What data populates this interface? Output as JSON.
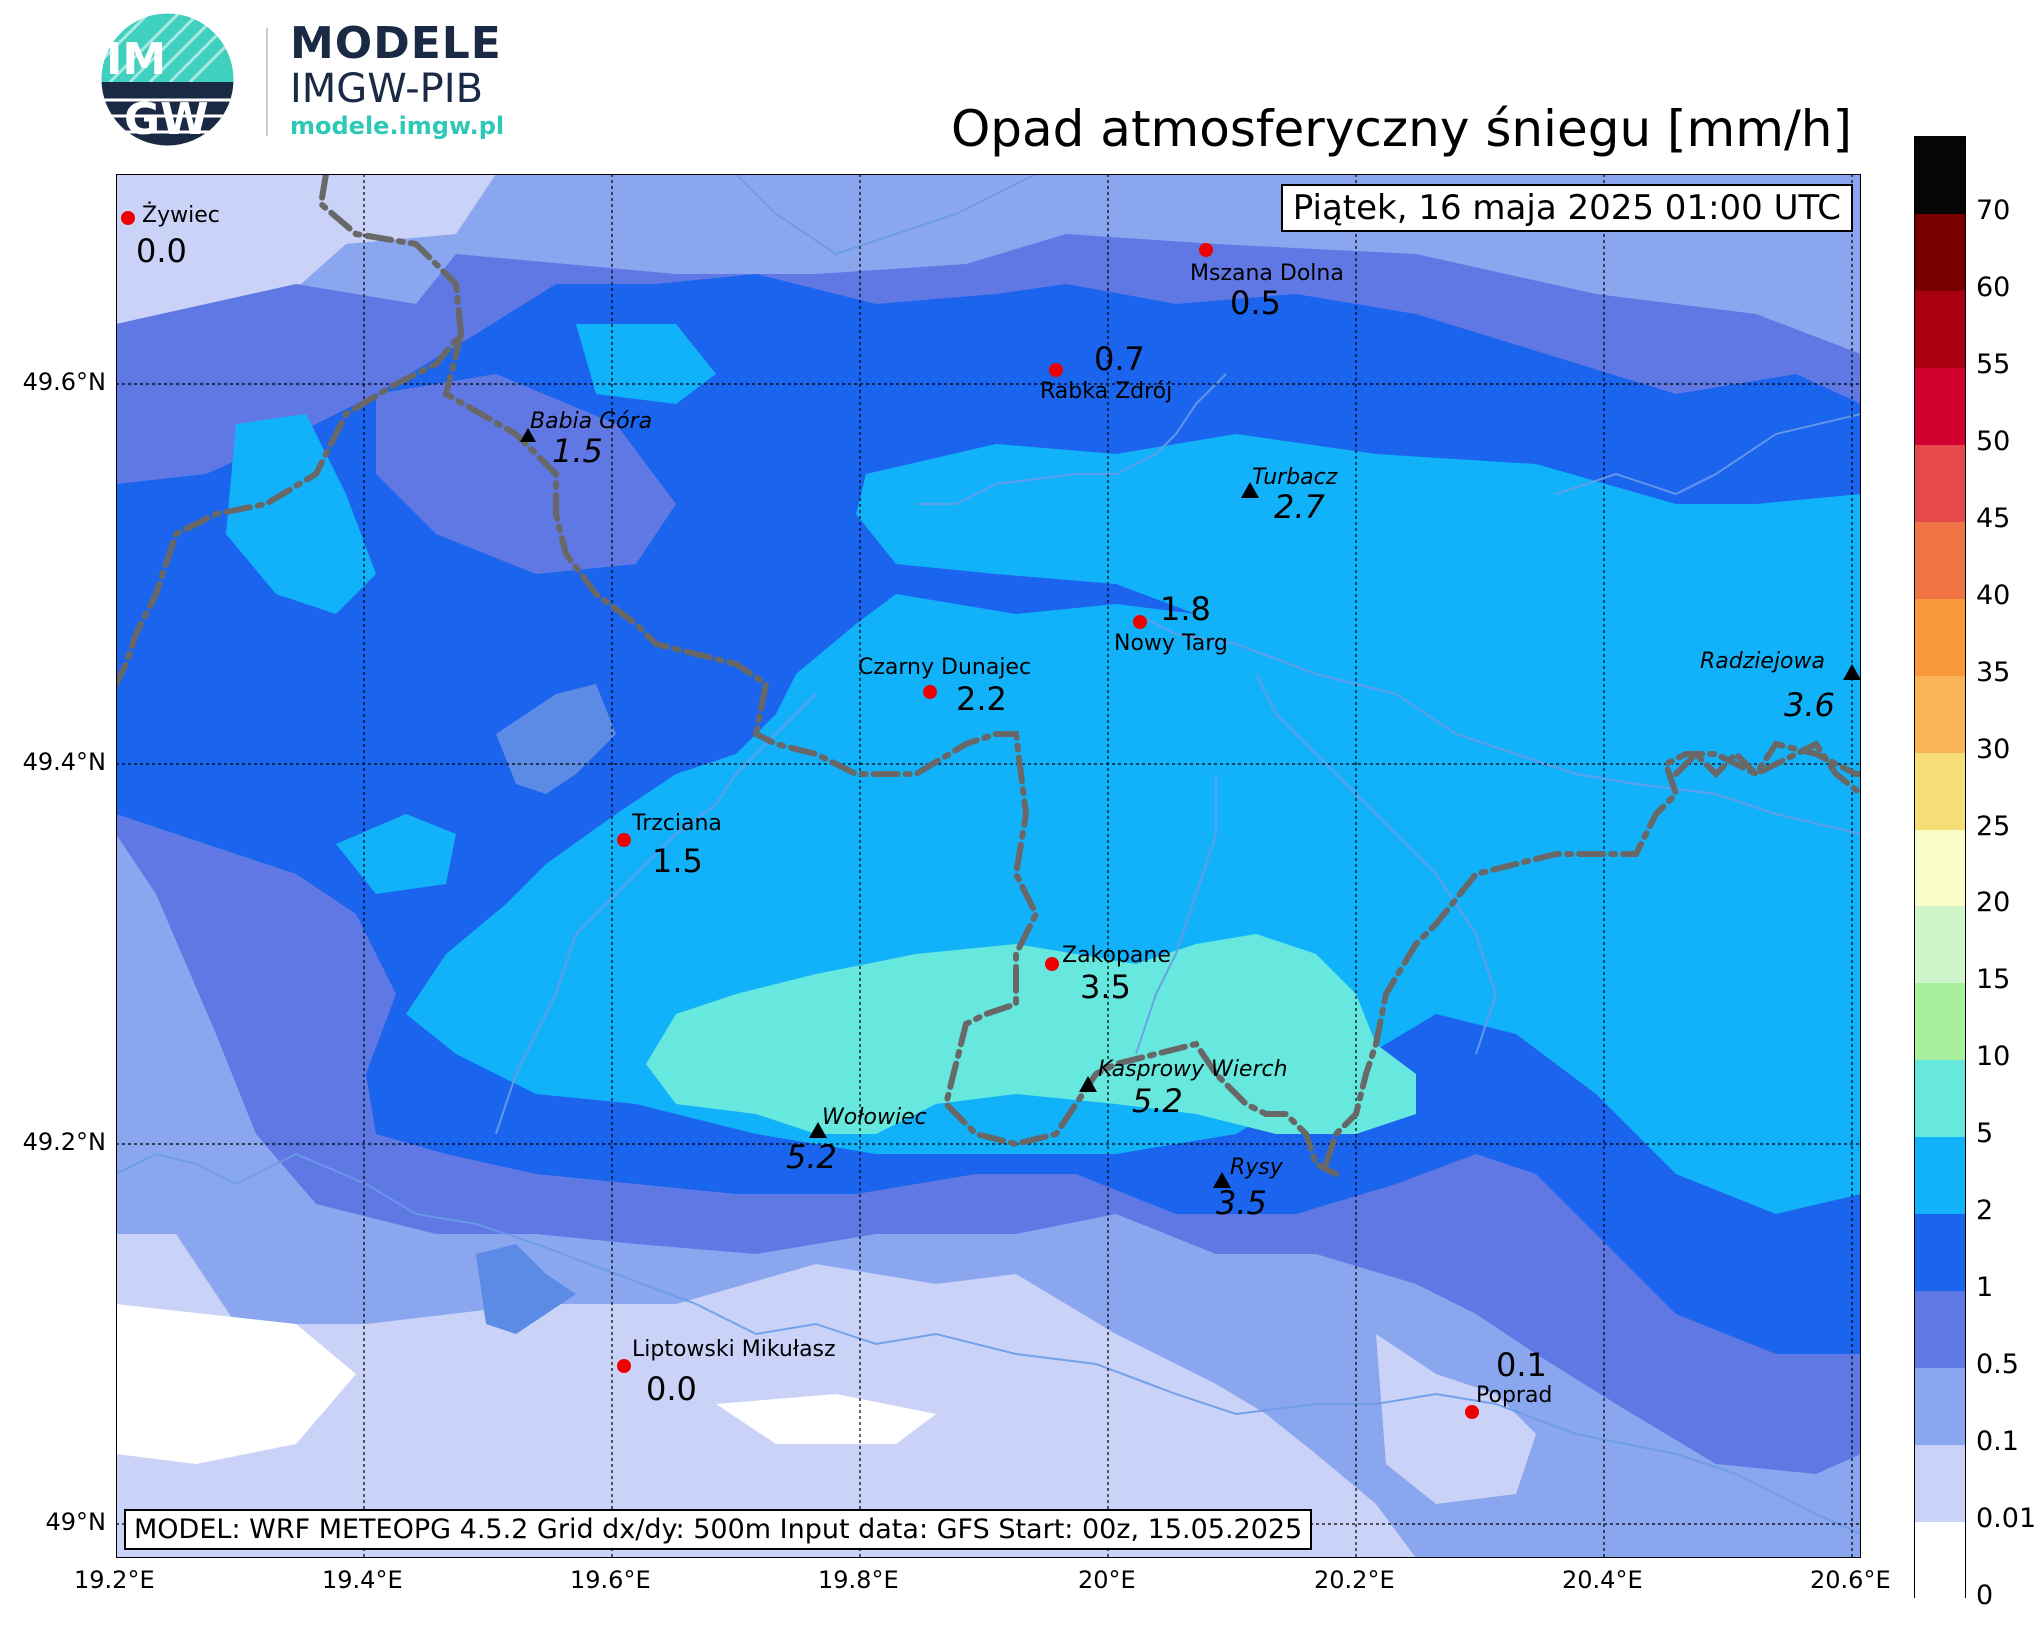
{
  "logo": {
    "mark_text_top": "IM",
    "mark_text_bottom": "GW",
    "title": "MODELE",
    "subtitle": "IMGW-PIB",
    "url": "modele.imgw.pl"
  },
  "title": "Opad atmosferyczny śniegu [mm/h]",
  "date_label": "Piątek, 16 maja 2025 01:00 UTC",
  "footer": "MODEL: WRF METEOPG 4.5.2 Grid dx/dy: 500m Input data: GFS Start: 00z, 15.05.2025",
  "axes": {
    "lon_ticks": [
      "19.2°E",
      "19.4°E",
      "19.6°E",
      "19.8°E",
      "20°E",
      "20.2°E",
      "20.4°E",
      "20.6°E"
    ],
    "lat_ticks": [
      "49.6°N",
      "49.4°N",
      "49.2°N",
      "49°N"
    ]
  },
  "colorbar": {
    "labels": [
      "70",
      "60",
      "55",
      "50",
      "45",
      "40",
      "35",
      "30",
      "25",
      "20",
      "15",
      "10",
      "5",
      "2",
      "1",
      "0.5",
      "0.1",
      "0.01",
      "0"
    ],
    "colors": [
      "#050505",
      "#7a0000",
      "#a80010",
      "#d2002e",
      "#e6484c",
      "#f07444",
      "#f89a3c",
      "#fab456",
      "#f6de76",
      "#fafcc6",
      "#cff5cb",
      "#a8f09c",
      "#66e8de",
      "#12b2fa",
      "#1a64ee",
      "#6078e4",
      "#8aa6ee",
      "#cad2f8",
      "#ffffff"
    ]
  },
  "places": [
    {
      "name": "Żywiec",
      "value": "0.0",
      "kind": "town"
    },
    {
      "name": "Mszana Dolna",
      "value": "0.5",
      "kind": "town"
    },
    {
      "name": "Rabka Zdrój",
      "value": "0.7",
      "kind": "town"
    },
    {
      "name": "Nowy Targ",
      "value": "1.8",
      "kind": "town"
    },
    {
      "name": "Czarny Dunajec",
      "value": "2.2",
      "kind": "town"
    },
    {
      "name": "Trzciana",
      "value": "1.5",
      "kind": "town"
    },
    {
      "name": "Zakopane",
      "value": "3.5",
      "kind": "town"
    },
    {
      "name": "Liptowski Mikułasz",
      "value": "0.0",
      "kind": "town"
    },
    {
      "name": "Poprad",
      "value": "0.1",
      "kind": "town"
    },
    {
      "name": "Babia Góra",
      "value": "1.5",
      "kind": "peak"
    },
    {
      "name": "Turbacz",
      "value": "2.7",
      "kind": "peak"
    },
    {
      "name": "Radziejowa",
      "value": "3.6",
      "kind": "peak"
    },
    {
      "name": "Kasprowy Wierch",
      "value": "5.2",
      "kind": "peak"
    },
    {
      "name": "Wołowiec",
      "value": "5.2",
      "kind": "peak"
    },
    {
      "name": "Rysy",
      "value": "3.5",
      "kind": "peak"
    }
  ]
}
